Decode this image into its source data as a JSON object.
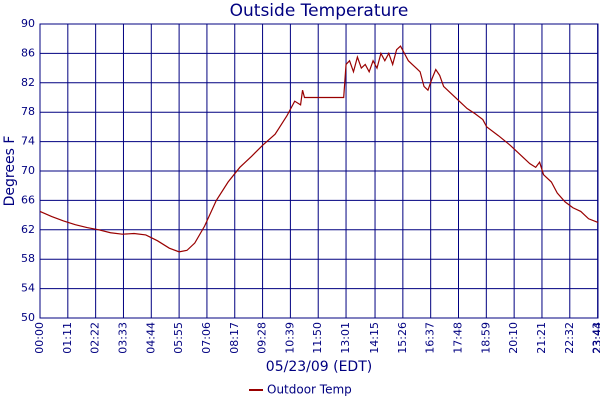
{
  "chart_data": {
    "type": "line",
    "title": "Outside Temperature",
    "y_label": "Degrees F",
    "x_label": "05/23/09 (EDT)",
    "x": [
      "00:00",
      "00:30",
      "01:00",
      "01:30",
      "02:00",
      "02:30",
      "03:00",
      "03:30",
      "04:00",
      "04:30",
      "05:00",
      "05:30",
      "05:55",
      "06:15",
      "06:35",
      "07:00",
      "07:30",
      "08:00",
      "08:30",
      "09:00",
      "09:28",
      "10:00",
      "10:30",
      "10:50",
      "11:05",
      "11:10",
      "11:15",
      "11:40",
      "12:00",
      "12:30",
      "12:55",
      "13:01",
      "13:10",
      "13:20",
      "13:30",
      "13:40",
      "13:50",
      "14:00",
      "14:10",
      "14:20",
      "14:30",
      "14:40",
      "14:50",
      "15:00",
      "15:10",
      "15:20",
      "15:30",
      "15:40",
      "15:50",
      "16:00",
      "16:10",
      "16:20",
      "16:30",
      "16:40",
      "16:50",
      "17:00",
      "17:10",
      "17:30",
      "17:50",
      "18:10",
      "18:30",
      "18:50",
      "19:00",
      "19:30",
      "20:00",
      "20:30",
      "20:50",
      "21:05",
      "21:15",
      "21:25",
      "21:45",
      "22:00",
      "22:20",
      "22:40",
      "23:00",
      "23:20",
      "23:44"
    ],
    "series": [
      {
        "name": "Outdoor Temp",
        "color": "#990000",
        "values": [
          64.5,
          63.8,
          63.2,
          62.7,
          62.3,
          62.0,
          61.6,
          61.4,
          61.5,
          61.3,
          60.5,
          59.5,
          59.0,
          59.2,
          60.2,
          62.5,
          66.0,
          68.5,
          70.5,
          72.0,
          73.5,
          75.0,
          77.5,
          79.5,
          79.0,
          81.0,
          80.0,
          80.0,
          80.0,
          80.0,
          80.0,
          84.5,
          85.0,
          83.5,
          85.5,
          84.0,
          84.5,
          83.5,
          85.0,
          84.0,
          86.0,
          85.0,
          86.0,
          84.5,
          86.5,
          87.0,
          86.0,
          85.0,
          84.5,
          84.0,
          83.5,
          81.5,
          81.0,
          82.5,
          83.8,
          83.0,
          81.5,
          80.5,
          79.5,
          78.5,
          77.8,
          77.0,
          76.0,
          74.8,
          73.5,
          72.0,
          71.0,
          70.5,
          71.2,
          69.5,
          68.5,
          67.0,
          65.8,
          65.0,
          64.5,
          63.5,
          63.0
        ]
      }
    ],
    "xlim": [
      "00:00",
      "23:44"
    ],
    "xticks": [
      "00:00",
      "01:11",
      "02:22",
      "03:33",
      "04:44",
      "05:55",
      "07:06",
      "08:17",
      "09:28",
      "10:39",
      "11:50",
      "13:01",
      "14:15",
      "15:26",
      "16:37",
      "17:48",
      "18:59",
      "20:10",
      "21:21",
      "22:32",
      "23:43",
      "23:44"
    ],
    "ylim": [
      50,
      90
    ],
    "yticks": [
      50,
      54,
      58,
      62,
      66,
      70,
      74,
      78,
      82,
      86,
      90
    ],
    "grid": true,
    "legend": "bottom"
  }
}
